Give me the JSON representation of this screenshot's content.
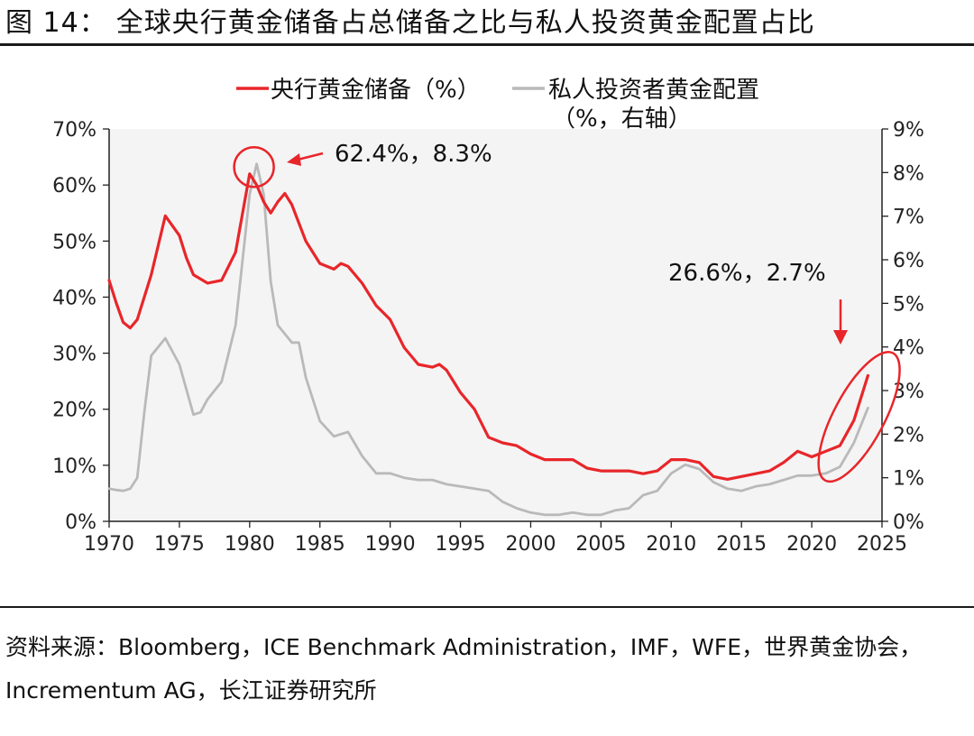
{
  "figure": {
    "label": "图 14：",
    "title": "全球央行黄金储备占总储备之比与私人投资黄金配置占比"
  },
  "source": "资料来源：Bloomberg，ICE Benchmark Administration，IMF，WFE，世界黄金协会，Incrementum AG，长江证券研究所",
  "colors": {
    "central_bank": "#e8262a",
    "private": "#b9b9b9",
    "annotation": "#e8262a"
  },
  "chart_data": {
    "type": "line",
    "grid": false,
    "legend_position": "top",
    "x_ticks": [
      1970,
      1975,
      1980,
      1985,
      1990,
      1995,
      2000,
      2005,
      2010,
      2015,
      2020,
      2025
    ],
    "xlim": [
      1970,
      2025
    ],
    "y_left": {
      "ylim": [
        0,
        70
      ],
      "ticks": [
        "0%",
        "10%",
        "20%",
        "30%",
        "40%",
        "50%",
        "60%",
        "70%"
      ]
    },
    "y_right": {
      "ylim": [
        0,
        9
      ],
      "ticks": [
        "0%",
        "1%",
        "2%",
        "3%",
        "4%",
        "5%",
        "6%",
        "7%",
        "8%",
        "9%"
      ]
    },
    "series": [
      {
        "name": "央行黄金储备（%）",
        "axis": "left",
        "points": [
          [
            1970,
            43
          ],
          [
            1970.5,
            39
          ],
          [
            1971,
            35.5
          ],
          [
            1971.5,
            34.5
          ],
          [
            1972,
            36
          ],
          [
            1973,
            44
          ],
          [
            1974,
            54.5
          ],
          [
            1975,
            51
          ],
          [
            1975.5,
            47
          ],
          [
            1976,
            44
          ],
          [
            1977,
            42.5
          ],
          [
            1978,
            43
          ],
          [
            1979,
            48
          ],
          [
            1980,
            62
          ],
          [
            1980.5,
            60
          ],
          [
            1981,
            57
          ],
          [
            1981.5,
            55
          ],
          [
            1982,
            57
          ],
          [
            1982.5,
            58.5
          ],
          [
            1983,
            56.5
          ],
          [
            1984,
            50
          ],
          [
            1985,
            46
          ],
          [
            1986,
            45
          ],
          [
            1986.5,
            46
          ],
          [
            1987,
            45.5
          ],
          [
            1988,
            42.5
          ],
          [
            1989,
            38.5
          ],
          [
            1990,
            36
          ],
          [
            1991,
            31
          ],
          [
            1992,
            28
          ],
          [
            1993,
            27.5
          ],
          [
            1993.5,
            28
          ],
          [
            1994,
            27
          ],
          [
            1995,
            23
          ],
          [
            1996,
            20
          ],
          [
            1997,
            15
          ],
          [
            1998,
            14
          ],
          [
            1999,
            13.5
          ],
          [
            2000,
            12
          ],
          [
            2001,
            11
          ],
          [
            2002,
            11
          ],
          [
            2003,
            11
          ],
          [
            2004,
            9.5
          ],
          [
            2005,
            9
          ],
          [
            2006,
            9
          ],
          [
            2007,
            9
          ],
          [
            2008,
            8.5
          ],
          [
            2009,
            9
          ],
          [
            2010,
            11
          ],
          [
            2011,
            11
          ],
          [
            2012,
            10.5
          ],
          [
            2013,
            8
          ],
          [
            2014,
            7.5
          ],
          [
            2015,
            8
          ],
          [
            2016,
            8.5
          ],
          [
            2017,
            9
          ],
          [
            2018,
            10.5
          ],
          [
            2019,
            12.5
          ],
          [
            2020,
            11.5
          ],
          [
            2021,
            12.5
          ],
          [
            2022,
            13.5
          ],
          [
            2023,
            18
          ],
          [
            2024,
            26
          ]
        ]
      },
      {
        "name": "私人投资者黄金配置（%，右轴）",
        "axis": "right",
        "points": [
          [
            1970,
            0.75
          ],
          [
            1970.5,
            0.72
          ],
          [
            1971,
            0.7
          ],
          [
            1971.5,
            0.75
          ],
          [
            1972,
            1
          ],
          [
            1972.5,
            2.5
          ],
          [
            1973,
            3.8
          ],
          [
            1974,
            4.2
          ],
          [
            1975,
            3.6
          ],
          [
            1976,
            2.45
          ],
          [
            1976.5,
            2.5
          ],
          [
            1977,
            2.8
          ],
          [
            1978,
            3.2
          ],
          [
            1979,
            4.5
          ],
          [
            1980,
            7.5
          ],
          [
            1980.5,
            8.2
          ],
          [
            1981,
            7.5
          ],
          [
            1981.5,
            5.5
          ],
          [
            1982,
            4.5
          ],
          [
            1983,
            4.1
          ],
          [
            1983.5,
            4.1
          ],
          [
            1984,
            3.3
          ],
          [
            1985,
            2.3
          ],
          [
            1986,
            1.95
          ],
          [
            1987,
            2.05
          ],
          [
            1988,
            1.5
          ],
          [
            1989,
            1.1
          ],
          [
            1990,
            1.1
          ],
          [
            1991,
            1.0
          ],
          [
            1992,
            0.95
          ],
          [
            1993,
            0.95
          ],
          [
            1994,
            0.85
          ],
          [
            1995,
            0.8
          ],
          [
            1996,
            0.75
          ],
          [
            1997,
            0.7
          ],
          [
            1998,
            0.45
          ],
          [
            1999,
            0.3
          ],
          [
            2000,
            0.2
          ],
          [
            2001,
            0.15
          ],
          [
            2002,
            0.15
          ],
          [
            2003,
            0.2
          ],
          [
            2004,
            0.15
          ],
          [
            2005,
            0.15
          ],
          [
            2006,
            0.25
          ],
          [
            2007,
            0.3
          ],
          [
            2008,
            0.6
          ],
          [
            2009,
            0.7
          ],
          [
            2010,
            1.1
          ],
          [
            2011,
            1.3
          ],
          [
            2012,
            1.2
          ],
          [
            2013,
            0.9
          ],
          [
            2014,
            0.75
          ],
          [
            2015,
            0.7
          ],
          [
            2016,
            0.8
          ],
          [
            2017,
            0.85
          ],
          [
            2018,
            0.95
          ],
          [
            2019,
            1.05
          ],
          [
            2020,
            1.05
          ],
          [
            2021,
            1.1
          ],
          [
            2022,
            1.25
          ],
          [
            2023,
            1.8
          ],
          [
            2024,
            2.6
          ]
        ]
      }
    ],
    "annotations": [
      {
        "text": "62.4%，8.3%",
        "x": 1980.5,
        "y_left": 62.4,
        "y_right": 8.3
      },
      {
        "text": "26.6%，2.7%",
        "x": 2023.5,
        "y_left": 26.6,
        "y_right": 2.7
      }
    ]
  }
}
